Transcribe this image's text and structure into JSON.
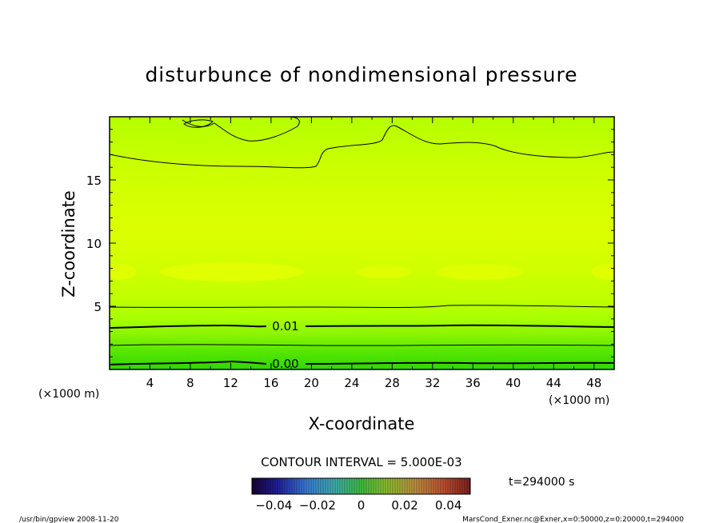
{
  "chart_data": {
    "type": "contour",
    "title": "disturbunce of nondimensional pressure",
    "xlabel": "X-coordinate",
    "ylabel": "Z-coordinate",
    "x_unit": "(×1000 m)",
    "z_unit": "(×1000 m)",
    "xlim": [
      0,
      50
    ],
    "ylim": [
      0,
      20
    ],
    "xticks": [
      4,
      8,
      12,
      16,
      20,
      24,
      28,
      32,
      36,
      40,
      44,
      48
    ],
    "yticks": [
      5,
      10,
      15
    ],
    "contour_labels": [
      {
        "text": "0.01",
        "x": 17.3,
        "z": 3.5
      },
      {
        "text": "0.00",
        "x": 17.3,
        "z": 0.5
      }
    ],
    "contour_interval_label": "CONTOUR INTERVAL = 5.000E-03",
    "colorbar": {
      "ticks": [
        "−0.04",
        "−0.02",
        "0",
        "0.02",
        "0.04"
      ],
      "tick_values": [
        -0.04,
        -0.02,
        0,
        0.02,
        0.04
      ],
      "range": [
        -0.05,
        0.05
      ]
    },
    "time_label": "t=294000 s",
    "colors": {
      "background_field": "#ccff00",
      "upper_light": "#d8ff00",
      "near_ground_green": "#33e000"
    }
  },
  "footer": {
    "left": "/usr/bin/gpview   2008-11-20",
    "right": "MarsCond_Exner.nc@Exner,x=0:50000,z=0:20000,t=294000"
  }
}
